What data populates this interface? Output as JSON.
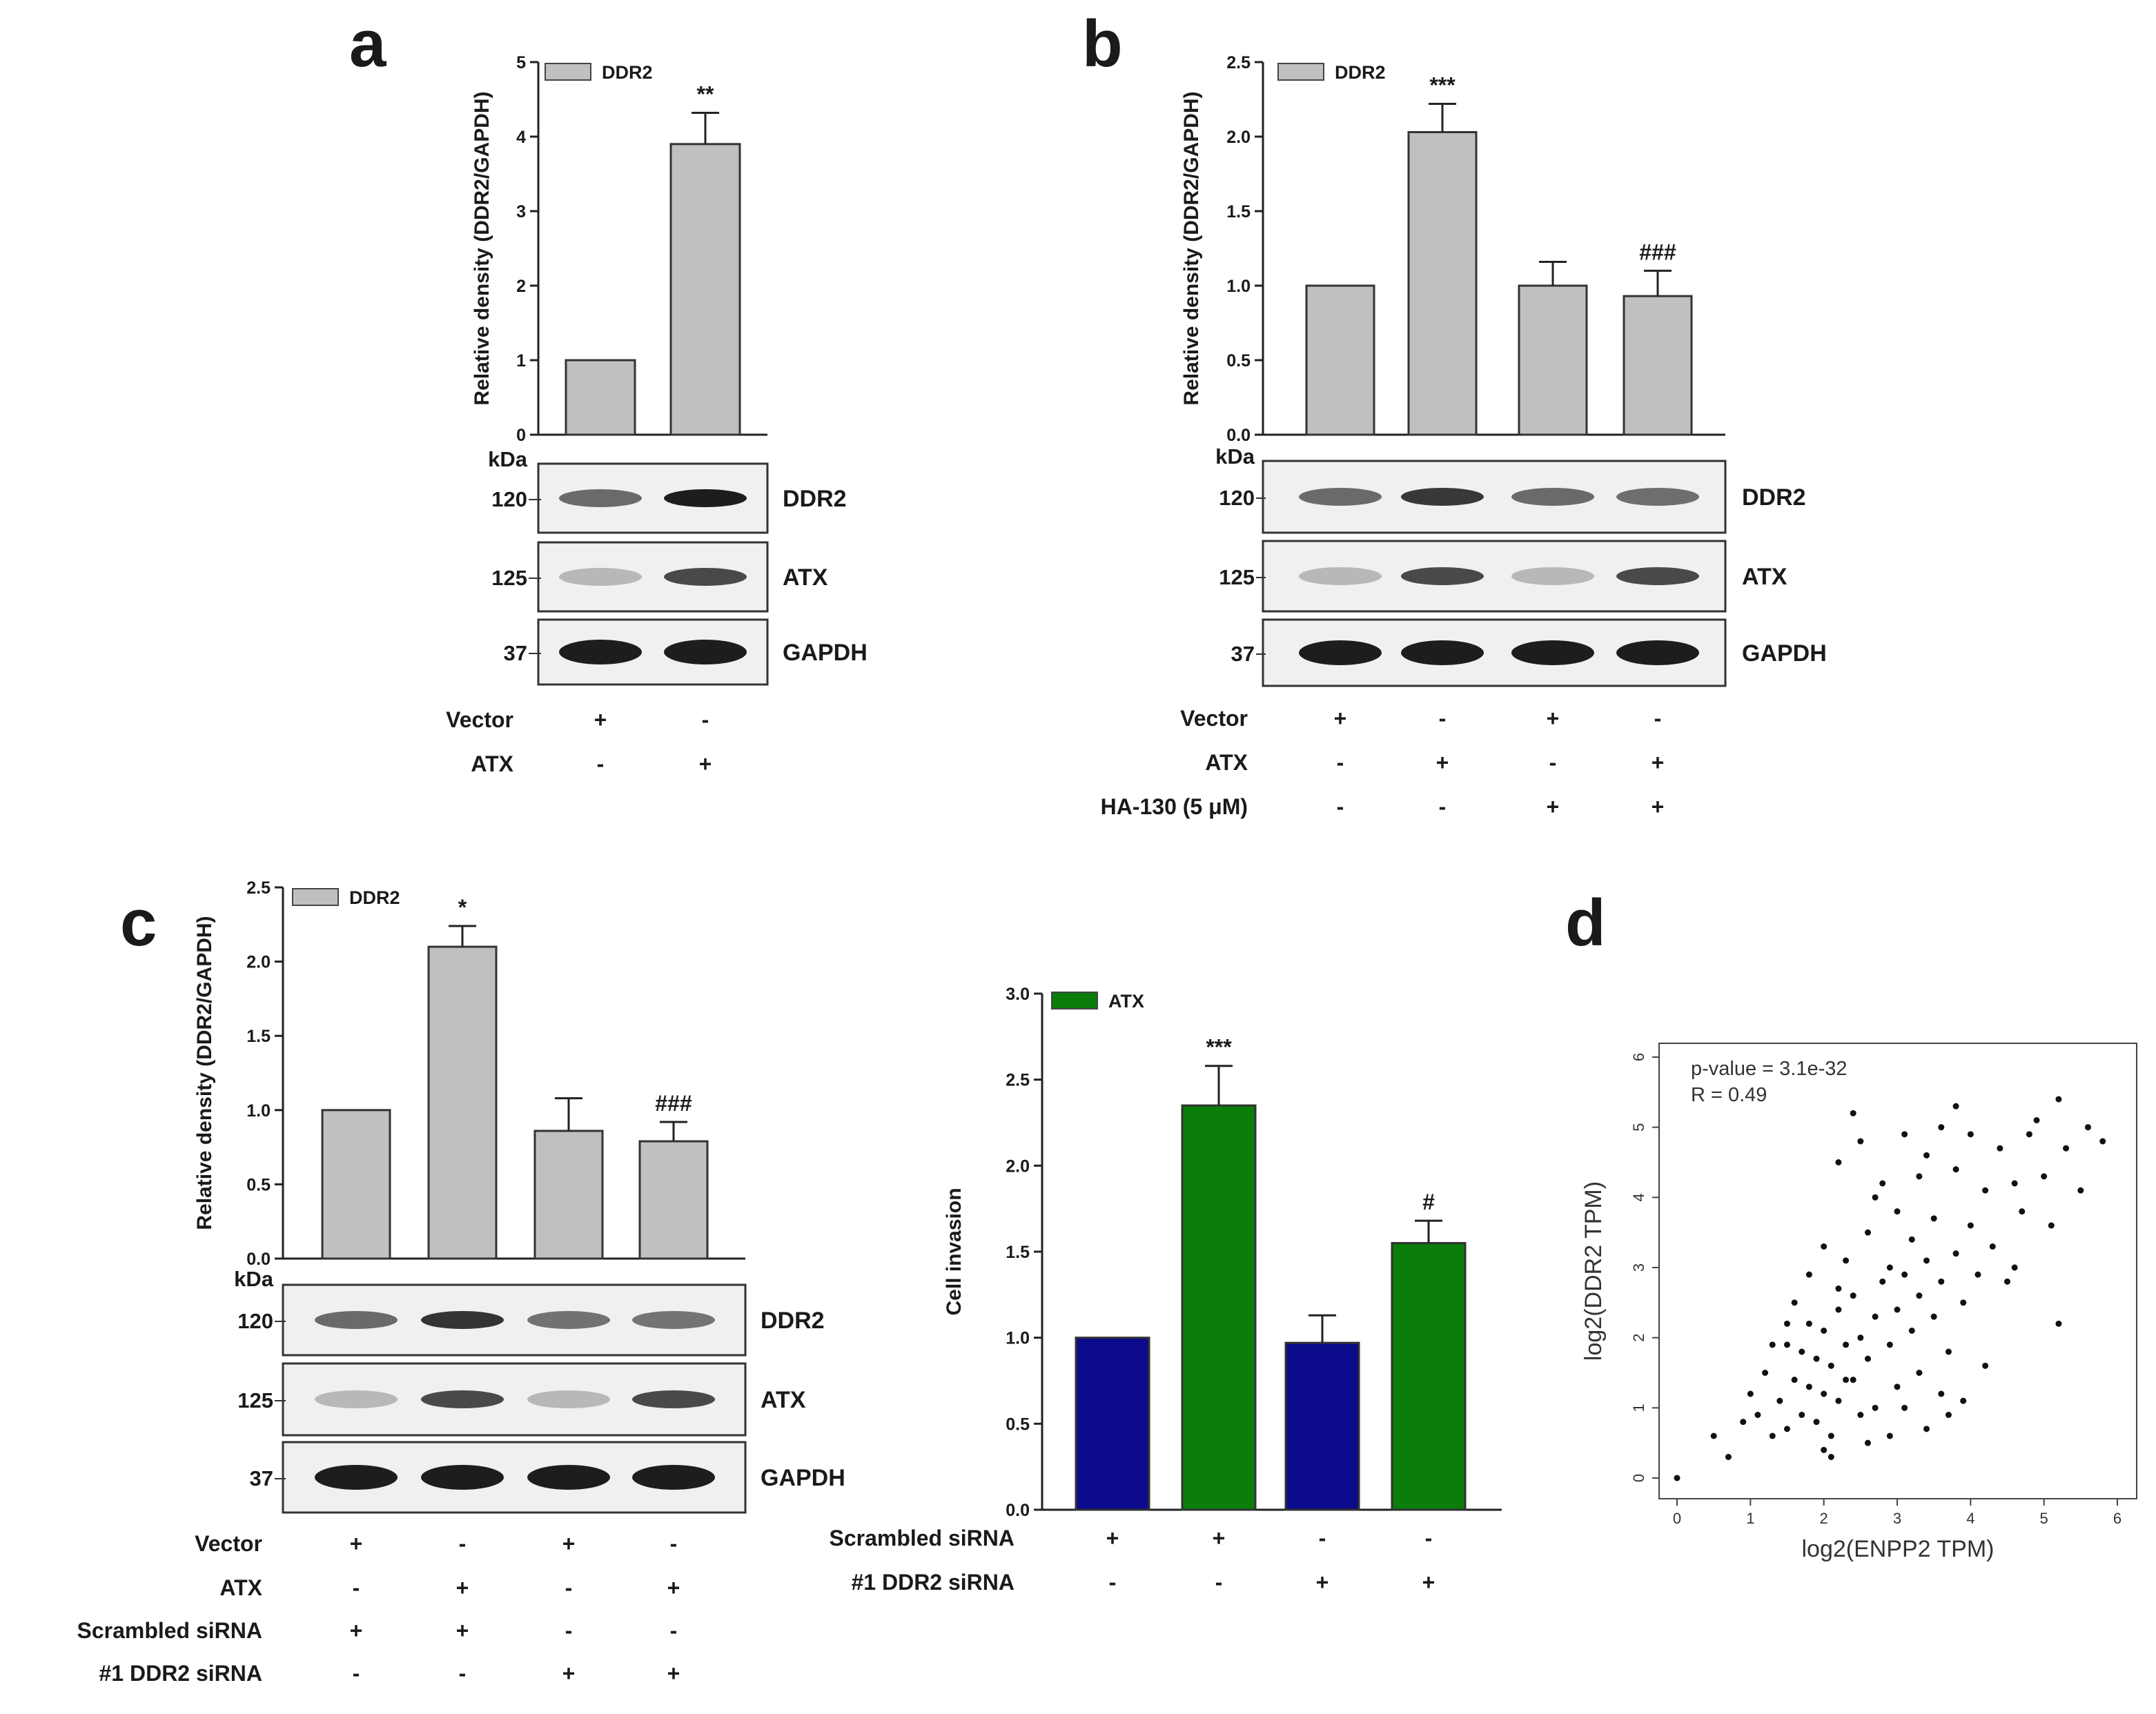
{
  "panels": {
    "a": {
      "letter": "a"
    },
    "b": {
      "letter": "b"
    },
    "c": {
      "letter": "c"
    },
    "d": {
      "letter": "d"
    }
  },
  "blot_common": {
    "kda_label": "kDa"
  },
  "chart_data": [
    {
      "id": "a",
      "type": "bar",
      "title": "",
      "ylabel": "Relative density (DDR2/GAPDH)",
      "ylim": [
        0,
        5
      ],
      "yticks": [
        "0",
        "1",
        "2",
        "3",
        "4",
        "5"
      ],
      "legend": [
        {
          "label": "DDR2",
          "color": "#c0c0c0"
        }
      ],
      "categories": [
        "Vector",
        "ATX"
      ],
      "values": [
        1.0,
        3.9
      ],
      "errors": [
        0,
        0.42
      ],
      "bar_colors": [
        "#c0c0c0",
        "#c0c0c0"
      ],
      "significance": [
        "",
        "**"
      ],
      "blot": {
        "rows": [
          {
            "protein": "DDR2",
            "kda": "120"
          },
          {
            "protein": "ATX",
            "kda": "125"
          },
          {
            "protein": "GAPDH",
            "kda": "37"
          }
        ]
      },
      "conditions": [
        {
          "label": "Vector",
          "signs": [
            "+",
            "-"
          ]
        },
        {
          "label": "ATX",
          "signs": [
            "-",
            "+"
          ]
        }
      ]
    },
    {
      "id": "b",
      "type": "bar",
      "title": "",
      "ylabel": "Relative density (DDR2/GAPDH)",
      "ylim": [
        0,
        2.5
      ],
      "yticks": [
        "0.0",
        "0.5",
        "1.0",
        "1.5",
        "2.0",
        "2.5"
      ],
      "legend": [
        {
          "label": "DDR2",
          "color": "#c0c0c0"
        }
      ],
      "categories": [
        "Vector",
        "ATX",
        "Vector + HA-130",
        "ATX + HA-130"
      ],
      "values": [
        1.0,
        2.03,
        1.0,
        0.93
      ],
      "errors": [
        0,
        0.19,
        0.16,
        0.17
      ],
      "bar_colors": [
        "#c0c0c0",
        "#c0c0c0",
        "#c0c0c0",
        "#c0c0c0"
      ],
      "significance": [
        "",
        "***",
        "",
        "###"
      ],
      "blot": {
        "rows": [
          {
            "protein": "DDR2",
            "kda": "120"
          },
          {
            "protein": "ATX",
            "kda": "125"
          },
          {
            "protein": "GAPDH",
            "kda": "37"
          }
        ]
      },
      "conditions": [
        {
          "label": "Vector",
          "signs": [
            "+",
            "-",
            "+",
            "-"
          ]
        },
        {
          "label": "ATX",
          "signs": [
            "-",
            "+",
            "-",
            "+"
          ]
        },
        {
          "label": "HA-130 (5 μM)",
          "signs": [
            "-",
            "-",
            "+",
            "+"
          ]
        }
      ]
    },
    {
      "id": "c-density",
      "type": "bar",
      "title": "",
      "ylabel": "Relative density (DDR2/GAPDH)",
      "ylim": [
        0,
        2.5
      ],
      "yticks": [
        "0.0",
        "0.5",
        "1.0",
        "1.5",
        "2.0",
        "2.5"
      ],
      "legend": [
        {
          "label": "DDR2",
          "color": "#c0c0c0"
        }
      ],
      "categories": [
        "Vector + Scrambled siRNA",
        "ATX + Scrambled siRNA",
        "Vector + #1 DDR2 siRNA",
        "ATX + #1 DDR2 siRNA"
      ],
      "values": [
        1.0,
        2.1,
        0.86,
        0.79
      ],
      "errors": [
        0,
        0.14,
        0.22,
        0.13
      ],
      "bar_colors": [
        "#c0c0c0",
        "#c0c0c0",
        "#c0c0c0",
        "#c0c0c0"
      ],
      "significance": [
        "",
        "*",
        "",
        "###"
      ],
      "blot": {
        "rows": [
          {
            "protein": "DDR2",
            "kda": "120"
          },
          {
            "protein": "ATX",
            "kda": "125"
          },
          {
            "protein": "GAPDH",
            "kda": "37"
          }
        ]
      },
      "conditions": [
        {
          "label": "Vector",
          "signs": [
            "+",
            "-",
            "+",
            "-"
          ]
        },
        {
          "label": "ATX",
          "signs": [
            "-",
            "+",
            "-",
            "+"
          ]
        },
        {
          "label": "Scrambled siRNA",
          "signs": [
            "+",
            "+",
            "-",
            "-"
          ]
        },
        {
          "label": "#1 DDR2 siRNA",
          "signs": [
            "-",
            "-",
            "+",
            "+"
          ]
        }
      ]
    },
    {
      "id": "c-invasion",
      "type": "bar",
      "title": "",
      "ylabel": "Cell invasion",
      "ylim": [
        0,
        3.0
      ],
      "yticks": [
        "0.0",
        "0.5",
        "1.0",
        "1.5",
        "2.0",
        "2.5",
        "3.0"
      ],
      "legend": [
        {
          "label": "ATX",
          "color": "#0a7d0a"
        }
      ],
      "categories": [
        "Scrambled siRNA (vector)",
        "Scrambled siRNA (ATX)",
        "#1 DDR2 siRNA (vector)",
        "#1 DDR2 siRNA (ATX)"
      ],
      "values": [
        1.0,
        2.35,
        0.97,
        1.55
      ],
      "errors": [
        0,
        0.23,
        0.16,
        0.13
      ],
      "bar_colors": [
        "#0a0a8a",
        "#0a7d0a",
        "#0a0a8a",
        "#0a7d0a"
      ],
      "significance": [
        "",
        "***",
        "",
        "#"
      ],
      "conditions": [
        {
          "label": "Scrambled siRNA",
          "signs": [
            "+",
            "+",
            "-",
            "-"
          ]
        },
        {
          "label": "#1 DDR2 siRNA",
          "signs": [
            "-",
            "-",
            "+",
            "+"
          ]
        }
      ]
    },
    {
      "id": "d",
      "type": "scatter",
      "title": "",
      "xlabel": "log2(ENPP2 TPM)",
      "ylabel": "log2(DDR2 TPM)",
      "xlim": [
        0,
        6
      ],
      "ylim": [
        0,
        6
      ],
      "xticks": [
        "0",
        "1",
        "2",
        "3",
        "4",
        "5",
        "6"
      ],
      "yticks": [
        "0",
        "1",
        "2",
        "3",
        "4",
        "5",
        "6"
      ],
      "annotations": [
        "p-value = 3.1e-32",
        "R = 0.49"
      ],
      "points_x": [
        0.0,
        0.5,
        0.7,
        0.9,
        1.0,
        1.1,
        1.2,
        1.3,
        1.3,
        1.4,
        1.5,
        1.5,
        1.6,
        1.6,
        1.7,
        1.7,
        1.8,
        1.8,
        1.9,
        1.9,
        2.0,
        2.0,
        2.0,
        2.1,
        2.1,
        2.2,
        2.2,
        2.2,
        2.3,
        2.3,
        2.4,
        2.4,
        2.5,
        2.5,
        2.5,
        2.6,
        2.6,
        2.7,
        2.7,
        2.8,
        2.8,
        2.9,
        2.9,
        3.0,
        3.0,
        3.0,
        3.1,
        3.1,
        3.2,
        3.2,
        3.3,
        3.3,
        3.4,
        3.4,
        3.5,
        3.5,
        3.6,
        3.6,
        3.7,
        3.8,
        3.8,
        3.9,
        4.0,
        4.0,
        4.1,
        4.2,
        4.3,
        4.4,
        4.5,
        4.6,
        4.7,
        4.8,
        4.9,
        5.0,
        5.1,
        5.2,
        5.3,
        5.5,
        5.6,
        5.8,
        2.0,
        2.2,
        2.4,
        2.6,
        3.4,
        3.6,
        3.8,
        4.2,
        4.6,
        5.2,
        1.5,
        1.8,
        2.1,
        2.3,
        2.7,
        2.9,
        3.1,
        3.3,
        3.7,
        3.9
      ],
      "points_y": [
        0.0,
        0.6,
        0.3,
        0.8,
        1.2,
        0.9,
        1.5,
        0.6,
        1.9,
        1.1,
        2.2,
        0.7,
        1.4,
        2.5,
        0.9,
        1.8,
        1.3,
        2.9,
        0.8,
        1.7,
        1.2,
        2.1,
        3.3,
        1.6,
        0.6,
        2.4,
        1.1,
        4.5,
        1.9,
        3.1,
        1.4,
        2.6,
        0.9,
        2.0,
        4.8,
        1.7,
        3.5,
        2.3,
        1.0,
        2.8,
        4.2,
        1.9,
        3.0,
        2.4,
        1.3,
        3.8,
        2.9,
        4.9,
        2.1,
        3.4,
        2.6,
        1.5,
        3.1,
        4.6,
        2.3,
        3.7,
        2.8,
        5.0,
        1.8,
        3.2,
        4.4,
        2.5,
        3.6,
        4.9,
        2.9,
        4.1,
        3.3,
        4.7,
        2.8,
        4.2,
        3.8,
        4.9,
        5.1,
        4.3,
        3.6,
        5.4,
        4.7,
        4.1,
        5.0,
        4.8,
        0.4,
        2.7,
        5.2,
        0.5,
        0.7,
        1.2,
        5.3,
        1.6,
        3.0,
        2.2,
        1.9,
        2.2,
        0.3,
        1.4,
        4.0,
        0.6,
        1.0,
        4.3,
        0.9,
        1.1
      ]
    }
  ]
}
